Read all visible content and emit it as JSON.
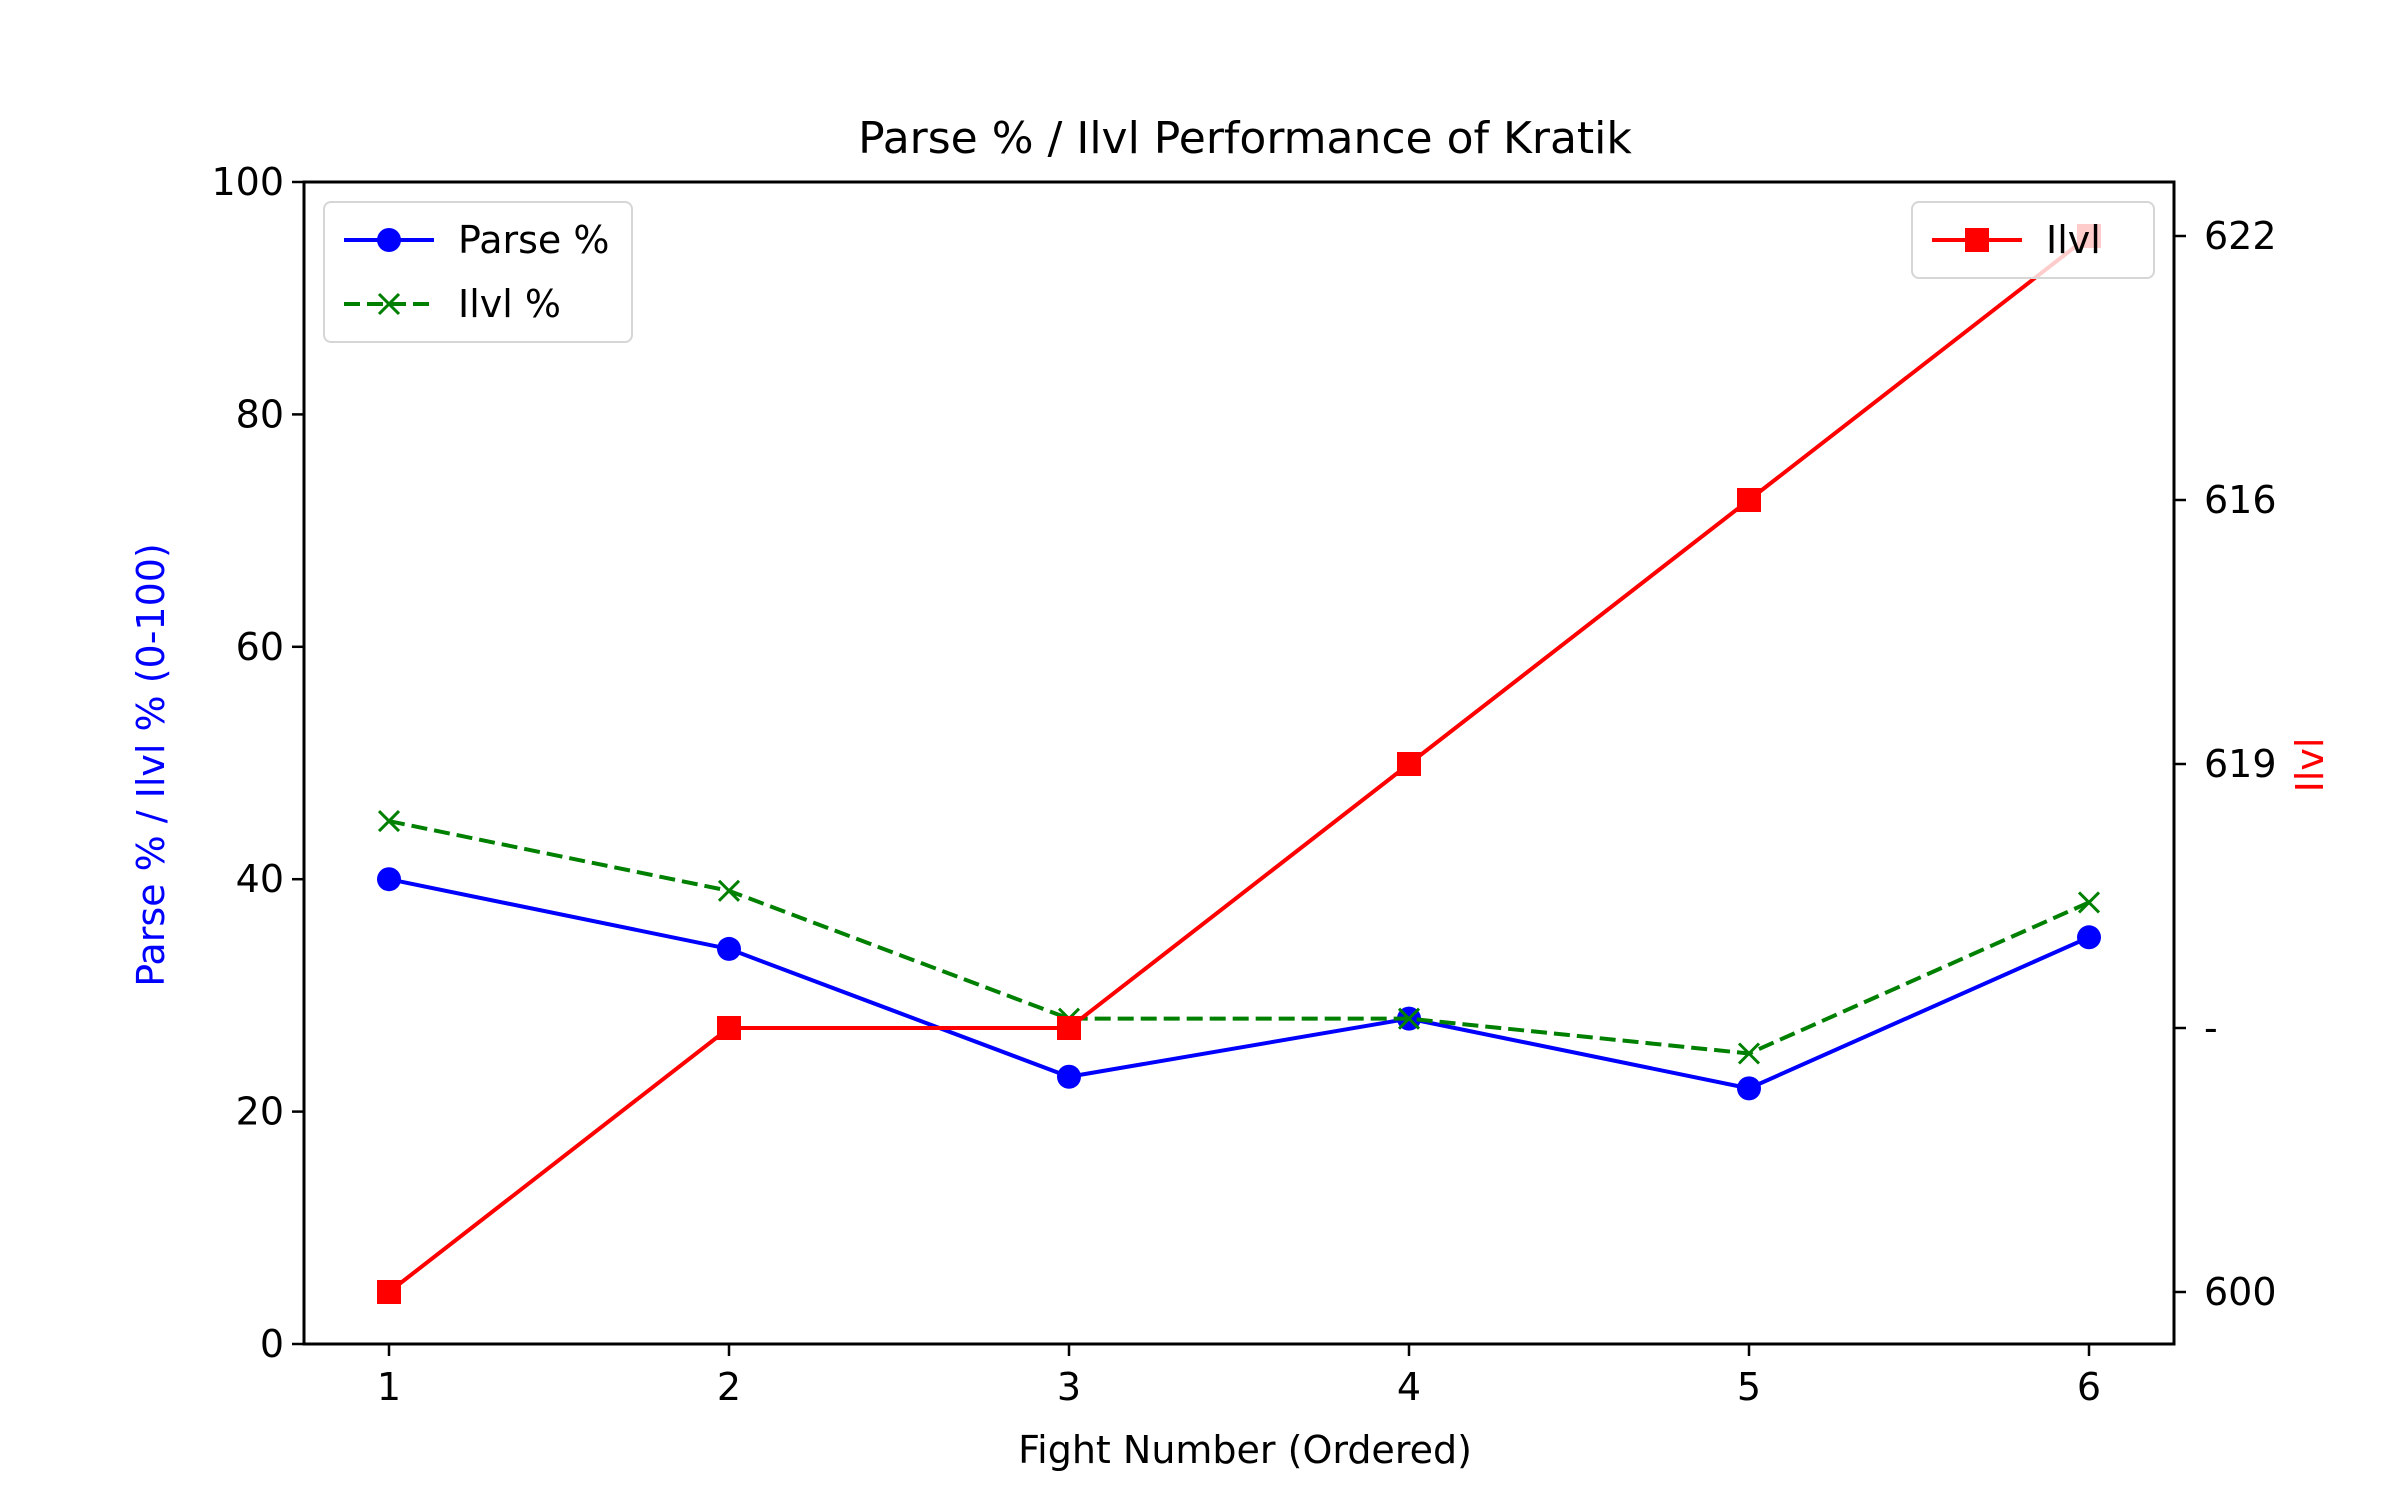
{
  "chart_data": {
    "type": "line",
    "title": "Parse % / Ilvl Performance of Kratik",
    "xlabel": "Fight Number (Ordered)",
    "ylabel": "Parse % / Ilvl % (0-100)",
    "y2label": "Ilvl",
    "x": [
      1,
      2,
      3,
      4,
      5,
      6
    ],
    "xlim": [
      0.75,
      6.25
    ],
    "ylim": [
      0,
      100
    ],
    "y_ticks": [
      0,
      20,
      40,
      60,
      80,
      100
    ],
    "y2_tick_labels": [
      "600",
      "-",
      "619",
      "616",
      "622"
    ],
    "series": [
      {
        "name": "Parse %",
        "axis": "left",
        "color": "#0000ff",
        "marker": "circle",
        "linestyle": "solid",
        "values": [
          40,
          34,
          23,
          28,
          22,
          35
        ]
      },
      {
        "name": "Ilvl %",
        "axis": "left",
        "color": "#008000",
        "marker": "x",
        "linestyle": "dashed",
        "values": [
          45,
          39,
          28,
          28,
          25,
          38
        ]
      },
      {
        "name": "Ilvl",
        "axis": "right",
        "color": "#ff0000",
        "marker": "square",
        "linestyle": "solid",
        "values": [
          600,
          610,
          610,
          619,
          616,
          622
        ]
      }
    ],
    "legends": [
      {
        "placement": "upper-left",
        "entries": [
          "Parse %",
          "Ilvl %"
        ]
      },
      {
        "placement": "upper-right",
        "entries": [
          "Ilvl"
        ]
      }
    ],
    "grid": false
  }
}
